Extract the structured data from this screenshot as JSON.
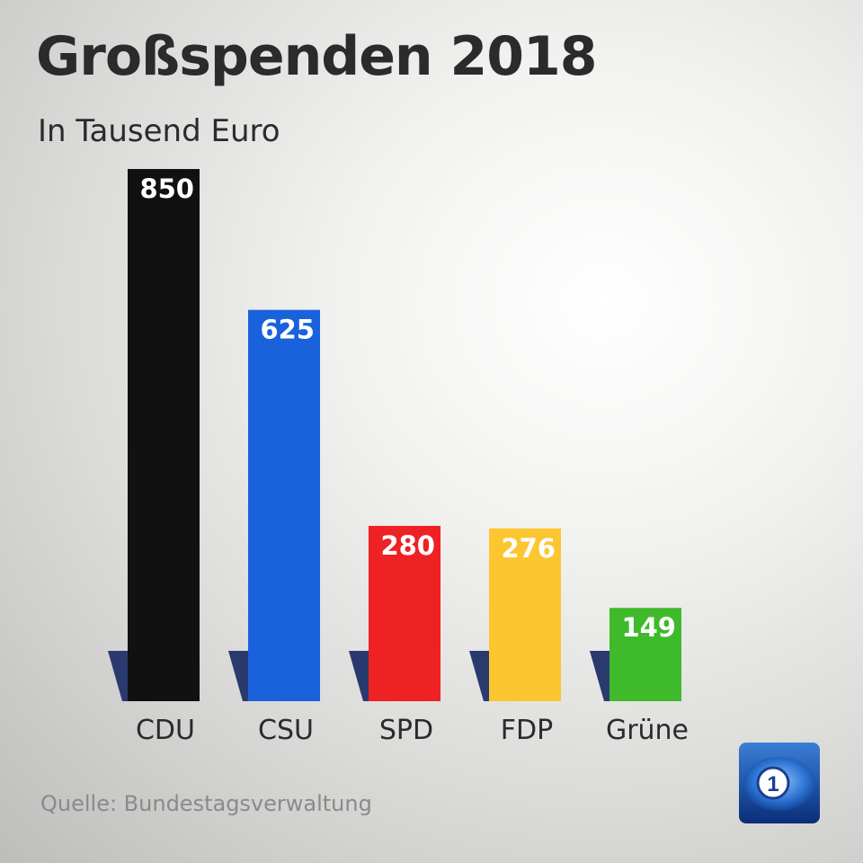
{
  "header": {
    "title": "Großspenden 2018",
    "subtitle": "In Tausend Euro"
  },
  "footer": {
    "source": "Quelle: Bundestagsverwaltung"
  },
  "logo": {
    "name": "ard-das-erste-logo",
    "text": "1"
  },
  "colors": {
    "text": "#2b2b2b",
    "shadow": "#2a3a6e"
  },
  "chart_data": {
    "type": "bar",
    "title": "Großspenden 2018",
    "subtitle": "In Tausend Euro",
    "xlabel": "",
    "ylabel": "In Tausend Euro",
    "ylim": [
      0,
      850
    ],
    "categories": [
      "CDU",
      "CSU",
      "SPD",
      "FDP",
      "Grüne"
    ],
    "values": [
      850,
      625,
      280,
      276,
      149
    ],
    "colors": [
      "#111111",
      "#1a62dc",
      "#ee2125",
      "#fcc631",
      "#3fba2a"
    ],
    "data_labels": [
      "850",
      "625",
      "280",
      "276",
      "149"
    ],
    "grid": false,
    "legend": "none"
  }
}
